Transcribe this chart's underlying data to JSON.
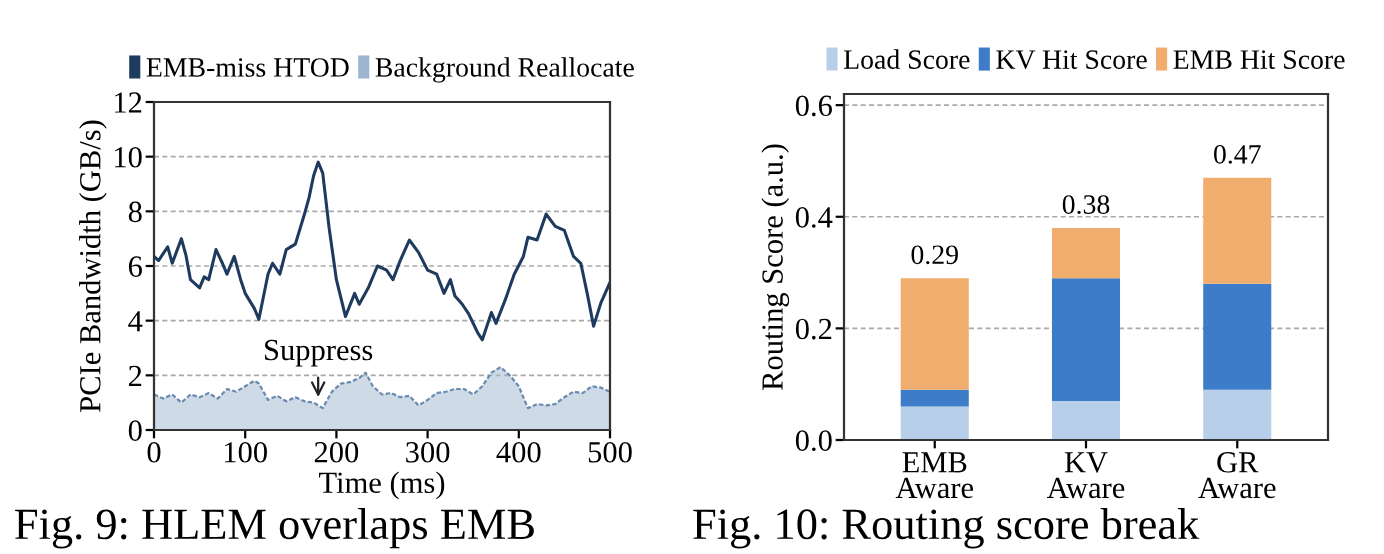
{
  "chart_data": [
    {
      "type": "line",
      "xlabel": "Time (ms)",
      "ylabel": "PCIe Bandwidth (GB/s)",
      "xlim": [
        0,
        500
      ],
      "ylim": [
        0,
        12
      ],
      "xticks": [
        0,
        100,
        200,
        300,
        400,
        500
      ],
      "yticks": [
        0,
        2,
        4,
        6,
        8,
        10,
        12
      ],
      "grid": "y",
      "legend": "top",
      "series": [
        {
          "name": "EMB-miss HTOD",
          "type": "line",
          "color": "#1f3a5f",
          "x": [
            0,
            5,
            15,
            20,
            30,
            35,
            40,
            50,
            55,
            60,
            68,
            75,
            80,
            88,
            95,
            100,
            110,
            115,
            125,
            130,
            138,
            145,
            155,
            165,
            170,
            175,
            180,
            185,
            192,
            200,
            210,
            220,
            225,
            235,
            245,
            255,
            262,
            270,
            280,
            290,
            300,
            310,
            318,
            325,
            330,
            338,
            345,
            355,
            360,
            370,
            375,
            385,
            395,
            405,
            410,
            420,
            430,
            440,
            450,
            460,
            468,
            475,
            482,
            490,
            500
          ],
          "values": [
            6.35,
            6.2,
            6.7,
            6.1,
            7.0,
            6.4,
            5.5,
            5.2,
            5.6,
            5.5,
            6.6,
            6.1,
            5.7,
            6.35,
            5.5,
            5.0,
            4.45,
            4.05,
            5.7,
            6.1,
            5.7,
            6.6,
            6.8,
            7.9,
            8.5,
            9.3,
            9.8,
            9.4,
            7.4,
            5.5,
            4.15,
            5.0,
            4.6,
            5.2,
            6.0,
            5.85,
            5.5,
            6.2,
            6.95,
            6.5,
            5.85,
            5.7,
            5.0,
            5.5,
            4.9,
            4.6,
            4.25,
            3.55,
            3.3,
            4.3,
            3.9,
            4.75,
            5.7,
            6.35,
            7.05,
            6.95,
            7.9,
            7.45,
            7.3,
            6.35,
            6.1,
            5.0,
            3.8,
            4.65,
            5.4
          ]
        },
        {
          "name": "Background Reallocate",
          "type": "area",
          "color": "#9fb5cf",
          "x": [
            0,
            10,
            20,
            30,
            40,
            50,
            60,
            70,
            80,
            90,
            100,
            110,
            115,
            125,
            135,
            145,
            155,
            165,
            175,
            185,
            195,
            205,
            215,
            225,
            232,
            240,
            250,
            260,
            270,
            280,
            290,
            300,
            310,
            320,
            330,
            340,
            350,
            360,
            370,
            380,
            390,
            400,
            410,
            420,
            430,
            440,
            450,
            460,
            470,
            480,
            490,
            500
          ],
          "values": [
            1.3,
            1.15,
            1.3,
            1.0,
            1.3,
            1.2,
            1.35,
            1.15,
            1.5,
            1.4,
            1.6,
            1.8,
            1.7,
            1.1,
            1.25,
            1.05,
            1.2,
            1.05,
            1.0,
            0.8,
            1.4,
            1.7,
            1.75,
            1.9,
            2.1,
            1.6,
            1.3,
            1.35,
            1.2,
            1.25,
            0.9,
            1.1,
            1.35,
            1.4,
            1.5,
            1.5,
            1.3,
            1.6,
            2.1,
            2.3,
            2.0,
            1.6,
            0.8,
            0.95,
            0.9,
            0.95,
            1.2,
            1.4,
            1.35,
            1.6,
            1.55,
            1.4
          ]
        }
      ],
      "annotations": [
        {
          "text": "Suppress",
          "x": 180,
          "y": 1.0
        },
        "Fig. 9: HLEM overlaps EMB"
      ]
    },
    {
      "type": "bar",
      "stacked": true,
      "ylabel": "Routing Score (a.u.)",
      "categories": [
        "EMB\nAware",
        "KV\nAware",
        "GR\nAware"
      ],
      "ylim": [
        0,
        0.62
      ],
      "yticks": [
        {
          "value": 0,
          "label": "0.0"
        },
        0.2,
        0.4,
        0.6
      ],
      "grid": "y",
      "legend": "top",
      "series": [
        {
          "name": "Load Score",
          "color": "#b7cfe8",
          "values": [
            0.06,
            0.07,
            0.09
          ]
        },
        {
          "name": "KV Hit Score",
          "color": "#3d7cc9",
          "values": [
            0.03,
            0.22,
            0.19
          ]
        },
        {
          "name": "EMB Hit Score",
          "color": "#f0ad6e",
          "values": [
            0.2,
            0.09,
            0.19
          ]
        }
      ],
      "totals": [
        "0.29",
        "0.38",
        "0.47"
      ],
      "annotations": [
        "Fig. 10: Routing score break"
      ]
    }
  ]
}
